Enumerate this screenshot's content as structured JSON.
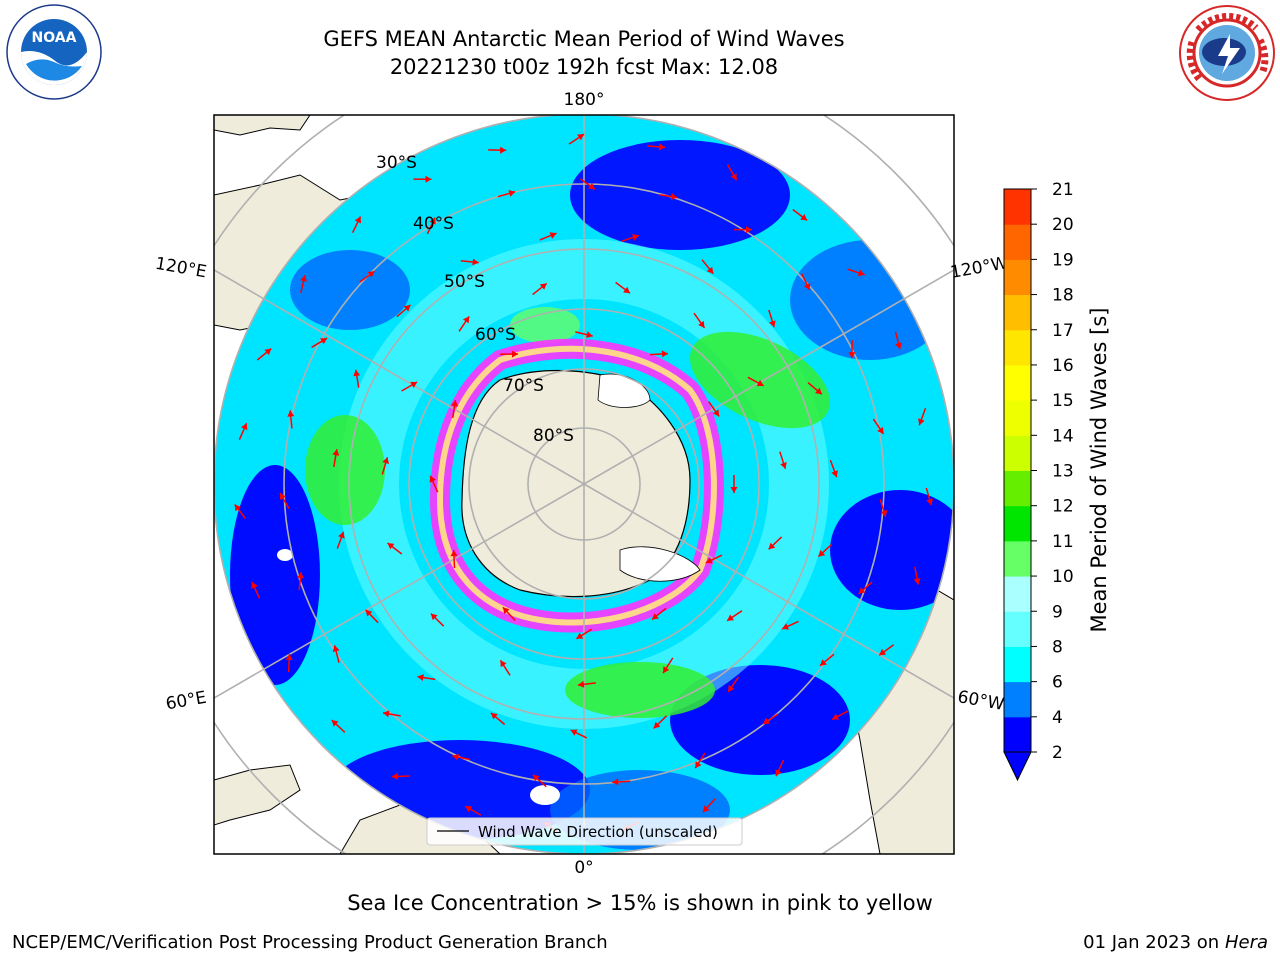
{
  "title": {
    "line1": "GEFS MEAN Antarctic Mean Period of Wind Waves",
    "line2": "20221230 t00z 192h fcst   Max: 12.08"
  },
  "logos": {
    "left": "noaa-logo",
    "left_text": "NOAA",
    "left_ring_text": "NATIONAL OCEANIC AND ATMOSPHERIC ADMINISTRATION · U.S. DEPARTMENT OF COMMERCE",
    "right": "national-weather-service-logo",
    "right_ring_text": "NATIONAL WEATHER SERVICE"
  },
  "map": {
    "projection": "south-polar-stereographic",
    "longitude_labels": [
      "180°",
      "120°E",
      "120°W",
      "60°E",
      "60°W",
      "0°"
    ],
    "latitude_labels": [
      "30°S",
      "40°S",
      "50°S",
      "60°S",
      "70°S",
      "80°S"
    ],
    "legend_label": "Wind Wave Direction (unscaled)",
    "colors": {
      "land": "#efecdc",
      "ocean_low": "#0000ff",
      "ocean_mid": "#00ffff",
      "green": "#33ff33",
      "sea_ice": "#ff33ff",
      "arrow": "#ff0000"
    }
  },
  "colorbar": {
    "label": "Mean Period of Wind Waves [s]",
    "ticks": [
      "2",
      "4",
      "6",
      "8",
      "9",
      "10",
      "11",
      "12",
      "13",
      "14",
      "15",
      "16",
      "17",
      "18",
      "19",
      "20",
      "21"
    ],
    "colors": [
      "#0000ff",
      "#0080ff",
      "#00ffff",
      "#66ffff",
      "#aaffff",
      "#66ff66",
      "#00e600",
      "#66ee00",
      "#ccff00",
      "#eeff00",
      "#ffff00",
      "#ffe600",
      "#ffbf00",
      "#ff8c00",
      "#ff6600",
      "#ff3300",
      "#ff0000"
    ],
    "extend_color": "#0000ff"
  },
  "subtitle": "Sea Ice Concentration > 15% is shown in pink to yellow",
  "footer": {
    "left": "NCEP/EMC/Verification Post Processing Product Generation Branch",
    "right_prefix": "01 Jan 2023 on ",
    "right_host": "Hera"
  }
}
